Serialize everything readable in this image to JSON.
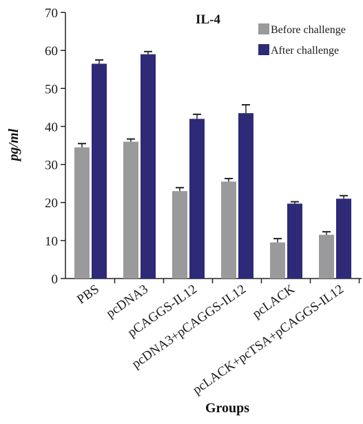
{
  "chart_data": {
    "type": "bar",
    "title": "IL-4",
    "xlabel": "Groups",
    "ylabel": "pg/ml",
    "ylim": [
      0,
      70
    ],
    "yticks": [
      0,
      10,
      20,
      30,
      40,
      50,
      60,
      70
    ],
    "categories": [
      "PBS",
      "pcDNA3",
      "pCAGGS-IL12",
      "pcDNA3+pCAGGS-IL12",
      "pcLACK",
      "pcLACK+pcTSA+pCAGGS-IL12"
    ],
    "series": [
      {
        "name": "Before challenge",
        "color": "#9a9a9c",
        "values": [
          34.5,
          36.0,
          23.0,
          25.5,
          9.5,
          11.5
        ],
        "errors": [
          1.0,
          0.7,
          0.9,
          0.8,
          1.0,
          0.8
        ]
      },
      {
        "name": "After challenge",
        "color": "#2e2a78",
        "values": [
          56.5,
          59.0,
          42.0,
          43.5,
          19.7,
          21.0
        ],
        "errors": [
          1.0,
          0.7,
          1.2,
          2.2,
          0.5,
          0.8
        ]
      }
    ],
    "legend_position": "top-right",
    "grid": false,
    "error_bars": true
  }
}
